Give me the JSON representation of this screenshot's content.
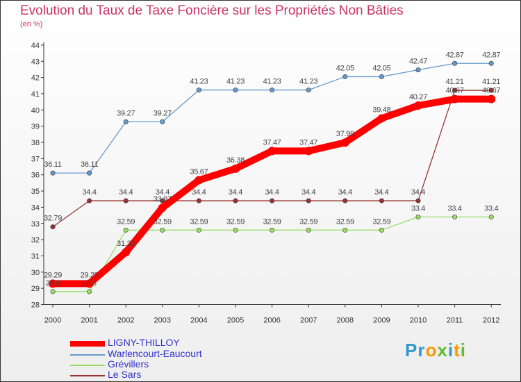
{
  "chart_data": {
    "type": "line",
    "title": "Evolution du Taux de Taxe Foncière sur les Propriétés Non Bâties",
    "subtitle": "(en %)",
    "xlabel": "",
    "ylabel": "(en %)",
    "categories": [
      "2000",
      "2001",
      "2002",
      "2003",
      "2004",
      "2005",
      "2006",
      "2007",
      "2008",
      "2009",
      "2010",
      "2011",
      "2012"
    ],
    "ylim": [
      28,
      44
    ],
    "yticks": [
      28,
      29,
      30,
      31,
      32,
      33,
      34,
      35,
      36,
      37,
      38,
      39,
      40,
      41,
      42,
      43,
      44
    ],
    "grid": false,
    "legend_position": "bottom-left",
    "series": [
      {
        "name": "LIGNY-THILLOY",
        "color": "#ff0000",
        "labels": [
          "29.29",
          "29.29",
          "31.23",
          "33.97",
          "35.67",
          "36.38",
          "37.47",
          "37.47",
          "37.99",
          "39.48",
          "40.27",
          "40.67",
          "40.67"
        ],
        "values": [
          29.29,
          29.29,
          31.23,
          33.97,
          35.67,
          36.38,
          37.47,
          37.47,
          37.99,
          39.48,
          40.27,
          40.67,
          40.67
        ]
      },
      {
        "name": "Warlencourt-Eaucourt",
        "color": "#6699cc",
        "labels": [
          "36.11",
          "36.11",
          "39.27",
          "39.27",
          "41.23",
          "41.23",
          "41.23",
          "41.23",
          "42.05",
          "42.05",
          "42.47",
          "42.87",
          "42.87"
        ],
        "values": [
          36.11,
          36.11,
          39.27,
          39.27,
          41.23,
          41.23,
          41.23,
          41.23,
          42.05,
          42.05,
          42.47,
          42.87,
          42.87
        ]
      },
      {
        "name": "Grévillers",
        "color": "#99dd66",
        "labels": [
          "28.8",
          "28.8",
          "32.59",
          "32.59",
          "32.59",
          "32.59",
          "32.59",
          "32.59",
          "32.59",
          "32.59",
          "33.4",
          "33.4",
          "33.4"
        ],
        "values": [
          28.8,
          28.8,
          32.59,
          32.59,
          32.59,
          32.59,
          32.59,
          32.59,
          32.59,
          32.59,
          33.4,
          33.4,
          33.4
        ]
      },
      {
        "name": "Le Sars",
        "color": "#993333",
        "labels": [
          "32.79",
          "34.4",
          "34.4",
          "34.4",
          "34.4",
          "34.4",
          "34.4",
          "34.4",
          "34.4",
          "34.4",
          "34.4",
          "41.21",
          "41.21"
        ],
        "values": [
          32.79,
          34.4,
          34.4,
          34.4,
          34.4,
          34.4,
          34.4,
          34.4,
          34.4,
          34.4,
          34.4,
          41.21,
          41.21
        ]
      }
    ]
  },
  "brand": {
    "letters": [
      "P",
      "r",
      "o",
      "x",
      "i",
      "t",
      "i"
    ],
    "colors": [
      "#3399cc",
      "#3399cc",
      "#ff9900",
      "#66bb33",
      "#3399cc",
      "#ff9900",
      "#66bb33"
    ]
  }
}
